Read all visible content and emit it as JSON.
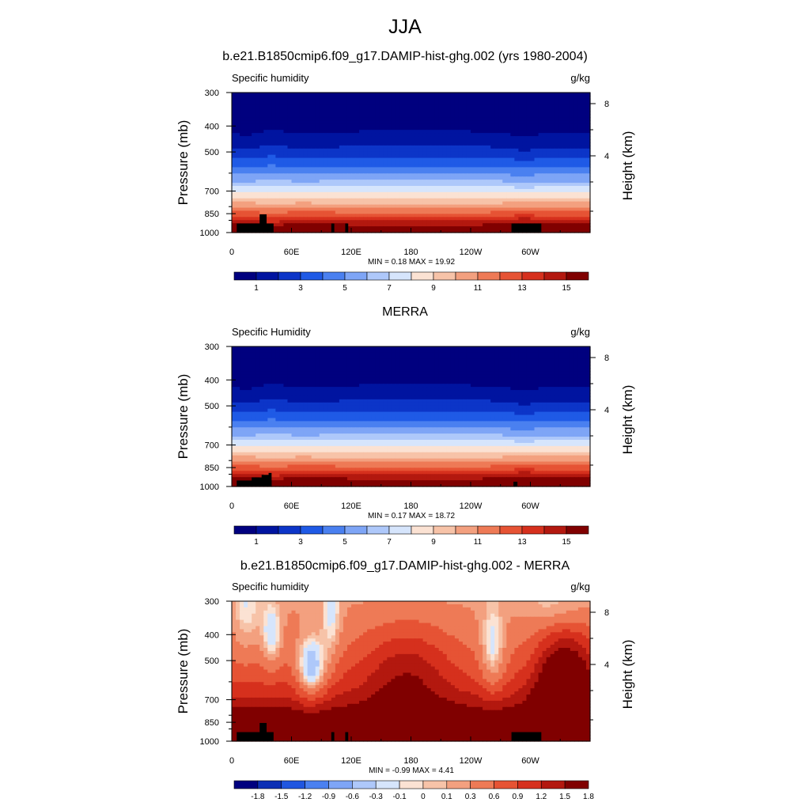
{
  "figure": {
    "title": "JJA"
  },
  "colors": {
    "full_field": [
      "#00007f",
      "#0014a0",
      "#0c35c8",
      "#1f5ae6",
      "#4a80f0",
      "#7ea5f6",
      "#aec8fa",
      "#d6e5fc",
      "#fbe2d3",
      "#f7c3a8",
      "#f3a07f",
      "#ee7a56",
      "#e65334",
      "#d6301d",
      "#b3180f",
      "#800000"
    ],
    "difference": [
      "#00007f",
      "#0c2fb5",
      "#2056e0",
      "#4a80f0",
      "#7ea5f6",
      "#aec8fa",
      "#d6e5fc",
      "#fbe2d3",
      "#f7c3a8",
      "#f3a07f",
      "#ee7a56",
      "#e65334",
      "#d6301d",
      "#b3180f",
      "#800000"
    ],
    "topography": "#000000"
  },
  "chart_data": [
    {
      "type": "heatmap",
      "title": "b.e21.B1850cmip6.f09_g17.DAMIP-hist-ghg.002 (yrs 1980-2004)",
      "left_label": "Specific humidity",
      "units": "g/kg",
      "ylabel": "Pressure (mb)",
      "ylabel_right": "Height (km)",
      "x_ticks": [
        "0",
        "60E",
        "120E",
        "180",
        "120W",
        "60W"
      ],
      "x_range": [
        0,
        360
      ],
      "y_ticks": [
        "300",
        "400",
        "500",
        "700",
        "850",
        "1000"
      ],
      "y_range": [
        300,
        1000
      ],
      "y_scale": "log",
      "right_ticks": [
        "8",
        "4"
      ],
      "stats": "MIN =   0.18  MAX =  19.92",
      "colorbar_labels": [
        "1",
        "3",
        "5",
        "7",
        "9",
        "11",
        "13",
        "15"
      ],
      "min": 0.18,
      "max": 19.92,
      "field": "full"
    },
    {
      "type": "heatmap",
      "title": "MERRA",
      "left_label": "Specific Humidity",
      "units": "g/kg",
      "ylabel": "Pressure (mb)",
      "ylabel_right": "Height (km)",
      "x_ticks": [
        "0",
        "60E",
        "120E",
        "180",
        "120W",
        "60W"
      ],
      "x_range": [
        0,
        360
      ],
      "y_ticks": [
        "300",
        "400",
        "500",
        "700",
        "850",
        "1000"
      ],
      "y_range": [
        300,
        1000
      ],
      "y_scale": "log",
      "right_ticks": [
        "8",
        "4"
      ],
      "stats": "MIN =   0.17  MAX =  18.72",
      "colorbar_labels": [
        "1",
        "3",
        "5",
        "7",
        "9",
        "11",
        "13",
        "15"
      ],
      "min": 0.17,
      "max": 18.72,
      "field": "full"
    },
    {
      "type": "heatmap",
      "title": "b.e21.B1850cmip6.f09_g17.DAMIP-hist-ghg.002 - MERRA",
      "left_label": "Specific humidity",
      "units": "g/kg",
      "ylabel": "Pressure (mb)",
      "ylabel_right": "Height (km)",
      "x_ticks": [
        "0",
        "60E",
        "120E",
        "180",
        "120W",
        "60W"
      ],
      "x_range": [
        0,
        360
      ],
      "y_ticks": [
        "300",
        "400",
        "500",
        "700",
        "850",
        "1000"
      ],
      "y_range": [
        300,
        1000
      ],
      "y_scale": "log",
      "right_ticks": [
        "8",
        "4"
      ],
      "stats": "MIN =  -0.99  MAX =   4.41",
      "colorbar_labels": [
        "-1.8",
        "-1.5",
        "-1.2",
        "-0.9",
        "-0.6",
        "-0.3",
        "-0.1",
        "0",
        "0.1",
        "0.3",
        "0.6",
        "0.9",
        "1.2",
        "1.5",
        "1.8"
      ],
      "min": -0.99,
      "max": 4.41,
      "field": "diff"
    }
  ]
}
